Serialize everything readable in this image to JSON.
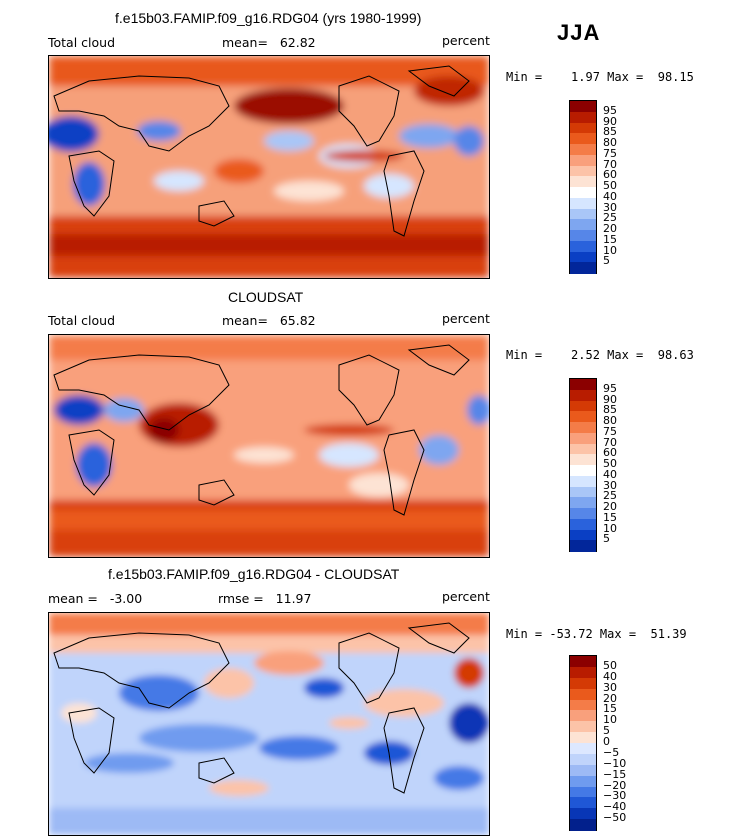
{
  "season": "JJA",
  "panels": [
    {
      "title": "f.e15b03.FAMIP.f09_g16.RDG04 (yrs 1980-1999)",
      "left_label": "Total cloud",
      "center_label": "mean=   62.82",
      "units": "percent",
      "minmax": "Min =    1.97 Max =  98.15",
      "colorbar": {
        "colors": [
          "#8b0000",
          "#b81c00",
          "#d43a05",
          "#ea5a1c",
          "#f47c48",
          "#f9a07c",
          "#fcc3a8",
          "#fde3d4",
          "#ffffff",
          "#d6e6ff",
          "#a9c6f7",
          "#7ea6f0",
          "#5686e8",
          "#2a62dc",
          "#0a3fc4",
          "#02269a"
        ],
        "labels": [
          "95",
          "90",
          "85",
          "80",
          "75",
          "70",
          "60",
          "50",
          "40",
          "30",
          "25",
          "20",
          "15",
          "10",
          "5"
        ]
      }
    },
    {
      "title": "CLOUDSAT",
      "left_label": "Total cloud",
      "center_label": "mean=   65.82",
      "units": "percent",
      "minmax": "Min =    2.52 Max =  98.63",
      "colorbar": {
        "colors": [
          "#8b0000",
          "#b81c00",
          "#d43a05",
          "#ea5a1c",
          "#f47c48",
          "#f9a07c",
          "#fcc3a8",
          "#fde3d4",
          "#ffffff",
          "#d6e6ff",
          "#a9c6f7",
          "#7ea6f0",
          "#5686e8",
          "#2a62dc",
          "#0a3fc4",
          "#02269a"
        ],
        "labels": [
          "95",
          "90",
          "85",
          "80",
          "75",
          "70",
          "60",
          "50",
          "40",
          "30",
          "25",
          "20",
          "15",
          "10",
          "5"
        ]
      }
    },
    {
      "title": "f.e15b03.FAMIP.f09_g16.RDG04 - CLOUDSAT",
      "left_label": "mean =   -3.00",
      "center_label": "rmse =   11.97",
      "units": "percent",
      "minmax": "Min = -53.72 Max =  51.39",
      "colorbar": {
        "colors": [
          "#8b0000",
          "#b81c00",
          "#d43a05",
          "#ea5a1c",
          "#f47c48",
          "#f9a07c",
          "#fcc3a8",
          "#fde3d4",
          "#dde8ff",
          "#c0d4fb",
          "#9dbaf5",
          "#6f9bef",
          "#4479e6",
          "#1f57d6",
          "#0836b6",
          "#02208c"
        ],
        "labels": [
          "50",
          "40",
          "30",
          "20",
          "15",
          "10",
          "5",
          "0",
          "-5",
          "-10",
          "-15",
          "-20",
          "-30",
          "-40",
          "-50"
        ]
      }
    }
  ],
  "chart_data": [
    {
      "type": "heatmap",
      "title": "f.e15b03.FAMIP.f09_g16.RDG04 (yrs 1980-1999)",
      "variable": "Total cloud",
      "units": "percent",
      "mean": 62.82,
      "min": 1.97,
      "max": 98.15,
      "contour_levels": [
        5,
        10,
        15,
        20,
        25,
        30,
        40,
        50,
        60,
        70,
        75,
        80,
        85,
        90,
        95
      ]
    },
    {
      "type": "heatmap",
      "title": "CLOUDSAT",
      "variable": "Total cloud",
      "units": "percent",
      "mean": 65.82,
      "min": 2.52,
      "max": 98.63,
      "contour_levels": [
        5,
        10,
        15,
        20,
        25,
        30,
        40,
        50,
        60,
        70,
        75,
        80,
        85,
        90,
        95
      ]
    },
    {
      "type": "heatmap",
      "title": "f.e15b03.FAMIP.f09_g16.RDG04 - CLOUDSAT",
      "units": "percent",
      "mean": -3.0,
      "rmse": 11.97,
      "min": -53.72,
      "max": 51.39,
      "contour_levels": [
        -50,
        -40,
        -30,
        -20,
        -15,
        -10,
        -5,
        0,
        5,
        10,
        15,
        20,
        30,
        40,
        50
      ]
    }
  ]
}
